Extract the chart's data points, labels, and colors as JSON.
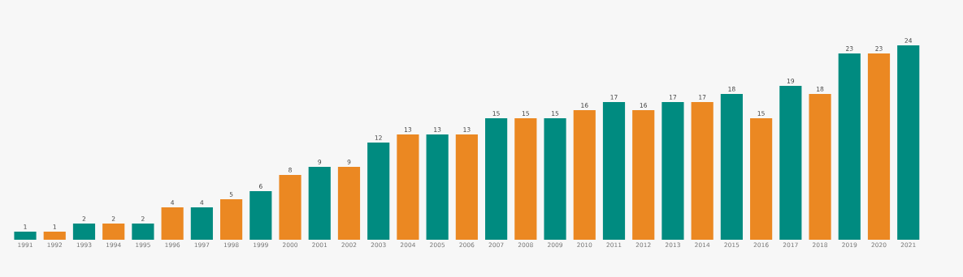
{
  "chart_data": {
    "type": "bar",
    "categories": [
      "1991",
      "1992",
      "1993",
      "1994",
      "1995",
      "1996",
      "1997",
      "1998",
      "1999",
      "2000",
      "2001",
      "2002",
      "2003",
      "2004",
      "2005",
      "2006",
      "2007",
      "2008",
      "2009",
      "2010",
      "2011",
      "2012",
      "2013",
      "2014",
      "2015",
      "2016",
      "2017",
      "2018",
      "2019",
      "2020",
      "2021"
    ],
    "values": [
      1,
      1,
      2,
      2,
      2,
      4,
      4,
      5,
      6,
      8,
      9,
      9,
      12,
      13,
      13,
      13,
      15,
      15,
      15,
      16,
      17,
      16,
      17,
      17,
      18,
      15,
      19,
      18,
      23,
      23,
      24
    ],
    "colors": [
      "#008b80",
      "#eb8822",
      "#008b80",
      "#eb8822",
      "#008b80",
      "#eb8822",
      "#008b80",
      "#eb8822",
      "#008b80",
      "#eb8822",
      "#008b80",
      "#eb8822",
      "#008b80",
      "#eb8822",
      "#008b80",
      "#eb8822",
      "#008b80",
      "#eb8822",
      "#008b80",
      "#eb8822",
      "#008b80",
      "#eb8822",
      "#008b80",
      "#eb8822",
      "#008b80",
      "#eb8822",
      "#008b80",
      "#eb8822",
      "#008b80",
      "#eb8822",
      "#008b80"
    ],
    "data_labels": true
  }
}
